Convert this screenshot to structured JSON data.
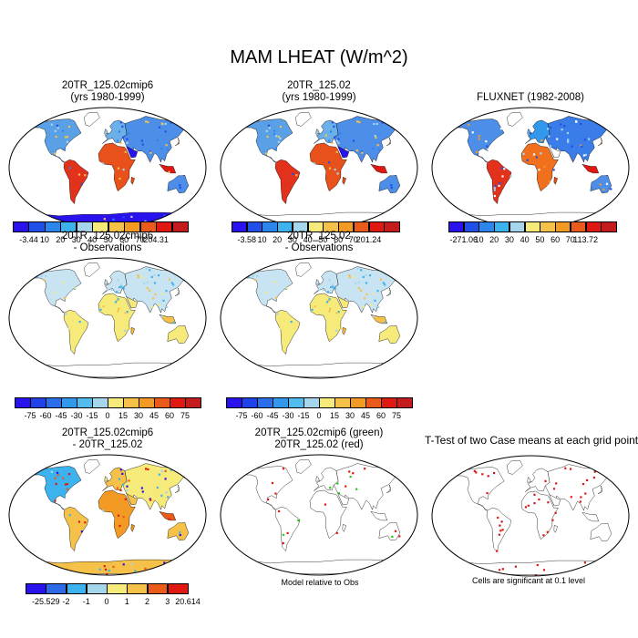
{
  "title": "MAM LHEAT (W/m^2)",
  "chart_data": [
    {
      "type": "heatmap",
      "panel": "p1",
      "title": [
        "20TR_125.02cmip6",
        "(yrs 1980-1999)"
      ],
      "colorbar": "cb1",
      "field": "lheat_a"
    },
    {
      "type": "heatmap",
      "panel": "p2",
      "title": [
        "20TR_125.02",
        "(yrs 1980-1999)"
      ],
      "colorbar": "cb2",
      "field": "lheat_b"
    },
    {
      "type": "heatmap",
      "panel": "p3",
      "title": [
        "FLUXNET (1982-2008)"
      ],
      "colorbar": "cb3",
      "field": "obs"
    },
    {
      "type": "heatmap",
      "panel": "p4",
      "title": [
        "20TR_125.02cmip6",
        "- Observations"
      ],
      "colorbar": "cb4",
      "field": "diff_a"
    },
    {
      "type": "heatmap",
      "panel": "p5",
      "title": [
        "20TR_125.02",
        "- Observations"
      ],
      "colorbar": "cb5",
      "field": "diff_b"
    },
    {
      "type": "heatmap",
      "panel": "p7",
      "title": [
        "20TR_125.02cmip6",
        "- 20TR_125.02"
      ],
      "colorbar": "cb7",
      "field": "diff_ab"
    },
    {
      "type": "scatter",
      "panel": "p8",
      "title": [
        "20TR_125.02cmip6 (green)",
        "20TR_125.02 (red)"
      ],
      "note": "Model relative to Obs",
      "field": "rel"
    },
    {
      "type": "scatter",
      "panel": "p9",
      "title": [
        "T-Test of two Case means at each grid point"
      ],
      "note": "Cells are significant at 0.1 level",
      "field": "ttest"
    }
  ],
  "colorbars": {
    "cb1": {
      "labels": [
        "-3.44",
        "10",
        "20",
        "30",
        "40",
        "50",
        "60",
        "70",
        "204.31"
      ],
      "colors": [
        "#2a12ee",
        "#2050e8",
        "#2c86ec",
        "#3cb2ee",
        "#a6d6ec",
        "#f5ea7a",
        "#f6c148",
        "#f39a24",
        "#ea5a1a",
        "#e01812",
        "#c41c1c"
      ]
    },
    "cb2": {
      "labels": [
        "-3.58",
        "10",
        "20",
        "30",
        "40",
        "50",
        "60",
        "70",
        "201.24"
      ],
      "colors": [
        "#2a12ee",
        "#2050e8",
        "#2c86ec",
        "#3cb2ee",
        "#a6d6ec",
        "#f5ea7a",
        "#f6c148",
        "#f39a24",
        "#ea5a1a",
        "#e01812",
        "#c41c1c"
      ]
    },
    "cb3": {
      "labels": [
        "-271.06",
        "10",
        "20",
        "30",
        "40",
        "50",
        "60",
        "70",
        "113.72"
      ],
      "colors": [
        "#2a12ee",
        "#2050e8",
        "#2c86ec",
        "#3cb2ee",
        "#a6d6ec",
        "#f5ea7a",
        "#f6c148",
        "#f39a24",
        "#ea5a1a",
        "#e01812",
        "#c41c1c"
      ]
    },
    "cb4": {
      "labels": [
        "-75",
        "-60",
        "-45",
        "-30",
        "-15",
        "0",
        "15",
        "30",
        "45",
        "60",
        "75"
      ],
      "colors": [
        "#2a12ee",
        "#2042e6",
        "#2a6eea",
        "#3298ec",
        "#52bcee",
        "#a6d6ec",
        "#f5ea7a",
        "#f6c148",
        "#f39a24",
        "#ea5a1a",
        "#e01812",
        "#c41c1c"
      ]
    },
    "cb5": {
      "labels": [
        "-75",
        "-60",
        "-45",
        "-30",
        "-15",
        "0",
        "15",
        "30",
        "45",
        "60",
        "75"
      ],
      "colors": [
        "#2a12ee",
        "#2042e6",
        "#2a6eea",
        "#3298ec",
        "#52bcee",
        "#a6d6ec",
        "#f5ea7a",
        "#f6c148",
        "#f39a24",
        "#ea5a1a",
        "#e01812",
        "#c41c1c"
      ]
    },
    "cb7": {
      "labels": [
        "-25.529",
        "-2",
        "-1",
        "0",
        "1",
        "2",
        "3",
        "20.614"
      ],
      "colors": [
        "#2a12ee",
        "#2c6ae8",
        "#3cb2ee",
        "#a6d6ec",
        "#f5ea7a",
        "#f6c148",
        "#ea5a1a",
        "#e01812"
      ]
    }
  }
}
